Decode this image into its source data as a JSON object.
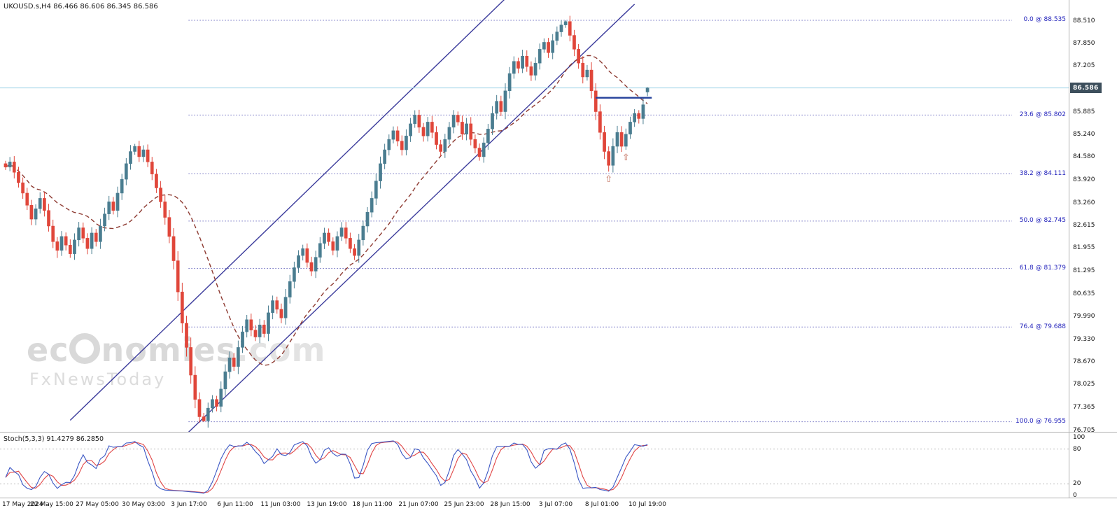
{
  "header": {
    "symbol_line": "UKOUSD.s,H4  86.466 86.606 86.345 86.586"
  },
  "watermark": {
    "text_before_ring": "ec",
    "text_after_ring": "nomies",
    "suffix": ".com",
    "subtitle": "FxNewsToday"
  },
  "indicator": {
    "label": "Stoch(5,3,3) 91.4279 86.2850"
  },
  "chart_data": {
    "type": "candlestick",
    "symbol": "UKOUSD.s",
    "timeframe": "H4",
    "ohlc_current": {
      "open": 86.466,
      "high": 86.606,
      "low": 86.345,
      "close": 86.586
    },
    "current_price_label": "86.586",
    "current_price": 86.586,
    "y_range": [
      76.705,
      88.51
    ],
    "price_axis_labels": [
      "88.510",
      "87.850",
      "87.205",
      "85.885",
      "85.240",
      "84.580",
      "83.920",
      "83.260",
      "82.615",
      "81.955",
      "81.295",
      "80.635",
      "79.990",
      "79.330",
      "78.670",
      "78.025",
      "77.365",
      "76.705"
    ],
    "time_labels": [
      "17 May 2024",
      "22 May 15:00",
      "27 May 05:00",
      "30 May 03:00",
      "3 Jun 17:00",
      "6 Jun 11:00",
      "11 Jun 03:00",
      "13 Jun 19:00",
      "18 Jun 11:00",
      "21 Jun 07:00",
      "25 Jun 23:00",
      "28 Jun 15:00",
      "3 Jul 07:00",
      "8 Jul 01:00",
      "10 Jul 19:00"
    ],
    "candles": {
      "first_open": 84.4,
      "closes": [
        84.3,
        84.45,
        84.15,
        83.85,
        83.55,
        83.2,
        82.8,
        83.1,
        83.4,
        83.05,
        82.6,
        82.15,
        81.9,
        82.3,
        82.05,
        81.8,
        82.2,
        82.55,
        82.25,
        81.95,
        82.4,
        82.15,
        82.6,
        82.95,
        83.3,
        83.05,
        83.55,
        83.95,
        84.4,
        84.75,
        84.9,
        84.6,
        84.8,
        84.45,
        84.1,
        83.7,
        83.3,
        82.85,
        82.3,
        81.6,
        80.7,
        79.8,
        79.1,
        78.3,
        77.6,
        77.1,
        76.98,
        77.35,
        77.6,
        77.4,
        77.9,
        78.4,
        78.8,
        78.55,
        79.1,
        79.55,
        79.9,
        79.6,
        79.4,
        79.75,
        79.5,
        80.1,
        80.45,
        80.2,
        79.95,
        80.55,
        81.0,
        81.4,
        81.75,
        81.95,
        81.55,
        81.3,
        81.7,
        82.1,
        82.4,
        82.15,
        81.9,
        82.3,
        82.55,
        82.25,
        81.95,
        81.75,
        82.2,
        82.6,
        83.0,
        83.4,
        83.9,
        84.4,
        84.8,
        85.1,
        85.35,
        85.05,
        84.8,
        85.2,
        85.55,
        85.8,
        85.45,
        85.2,
        85.6,
        85.3,
        84.95,
        84.75,
        85.1,
        85.45,
        85.8,
        85.6,
        85.25,
        85.55,
        85.1,
        84.85,
        84.6,
        85.0,
        85.4,
        85.85,
        86.2,
        85.9,
        86.5,
        87.0,
        87.35,
        87.15,
        87.5,
        87.2,
        86.95,
        87.3,
        87.7,
        87.9,
        87.6,
        87.95,
        88.2,
        88.4,
        88.5,
        88.1,
        87.7,
        87.3,
        86.9,
        87.1,
        86.5,
        85.9,
        85.3,
        84.75,
        84.35,
        84.9,
        85.3,
        84.9,
        85.25,
        85.6,
        85.85,
        85.7,
        86.1,
        86.586
      ],
      "overrides": {
        "12": {
          "low": 81.68
        },
        "30": {
          "high": 84.97
        },
        "46": {
          "low": 76.955
        },
        "130": {
          "high": 88.535
        },
        "140": {
          "low": 84.17
        },
        "144": {
          "low": 84.8
        },
        "149": {
          "open": 86.466,
          "high": 86.606,
          "low": 86.345
        }
      }
    },
    "ma": {
      "period": 20
    },
    "fib_levels": [
      {
        "label": "0.0 @ 88.535",
        "price": 88.535
      },
      {
        "label": "23.6 @ 85.802",
        "price": 85.802
      },
      {
        "label": "38.2 @ 84.111",
        "price": 84.111
      },
      {
        "label": "50.0 @ 82.745",
        "price": 82.745
      },
      {
        "label": "61.8 @ 81.379",
        "price": 81.379
      },
      {
        "label": "76.4 @ 79.688",
        "price": 79.688
      },
      {
        "label": "100.0 @ 76.955",
        "price": 76.955
      }
    ],
    "trendlines": [
      {
        "i1": 15,
        "p1": 77.0,
        "i2": 118,
        "p2": 89.4
      },
      {
        "i1": 42,
        "p1": 76.6,
        "i2": 146,
        "p2": 89.0
      }
    ],
    "resistance_segment": {
      "i1": 137,
      "i2": 150,
      "price": 86.3
    },
    "arrows": [
      {
        "index": 140,
        "price": 84.17
      },
      {
        "index": 144,
        "price": 84.8
      }
    ],
    "stochastic": {
      "params": "5,3,3",
      "k_current": 91.4279,
      "d_current": 86.285,
      "axis_labels": [
        "100",
        "80",
        "20",
        "0"
      ],
      "axis_values": [
        100,
        80,
        20,
        0
      ],
      "guide_levels": [
        80,
        20
      ]
    },
    "colors": {
      "up": "#4a7d90",
      "down": "#e0463a",
      "ma": "#8e3b32",
      "trend": "#3c3c9c",
      "fib": "#2929a3",
      "fib_text": "#2121bb",
      "price_line": "#a8d8ea",
      "price_tag_bg": "#3d4f5c",
      "stoch_k": "#3a56c4",
      "stoch_d": "#e04545",
      "segment": "#24419b",
      "arrow": "#c3705e",
      "separator": "#b0b0b0"
    }
  }
}
